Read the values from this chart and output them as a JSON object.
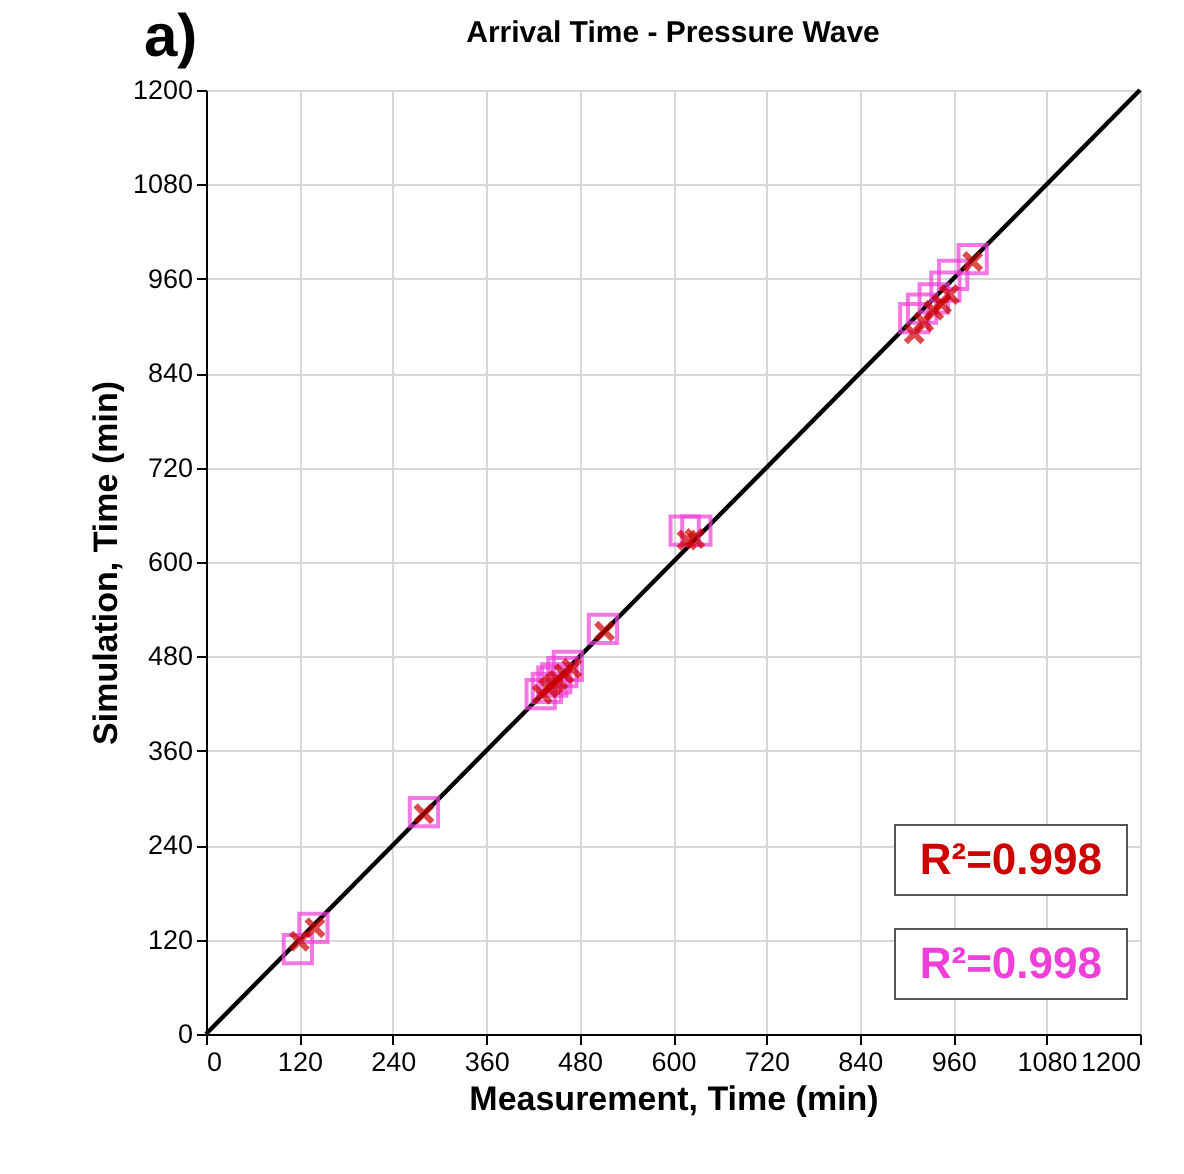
{
  "chart_data": {
    "type": "scatter",
    "title": "Arrival Time - Pressure Wave",
    "xlabel": "Measurement, Time (min)",
    "ylabel": "Simulation, Time (min)",
    "xlim": [
      0,
      1200
    ],
    "ylim": [
      0,
      1200
    ],
    "xticks": [
      0,
      120,
      240,
      360,
      480,
      600,
      720,
      840,
      960,
      1080,
      1200
    ],
    "yticks": [
      0,
      120,
      240,
      360,
      480,
      600,
      720,
      840,
      960,
      1080,
      1200
    ],
    "grid": true,
    "annotations": [
      "a)",
      "R²=0.998",
      "R²=0.998"
    ],
    "series": [
      {
        "type": "line",
        "color": "#000000",
        "marker": "none",
        "x": [
          0,
          1200
        ],
        "values": [
          0,
          1200
        ]
      },
      {
        "color": "#ee3fd8",
        "marker": "square",
        "x": [
          118,
          138,
          280,
          430,
          438,
          445,
          450,
          458,
          465,
          510,
          615,
          630,
          910,
          920,
          935,
          950,
          960,
          985
        ],
        "values": [
          108,
          135,
          282,
          432,
          440,
          448,
          452,
          460,
          468,
          515,
          640,
          640,
          910,
          922,
          935,
          950,
          965,
          985
        ]
      },
      {
        "color": "#cc0000",
        "marker": "cross",
        "x": [
          120,
          140,
          280,
          432,
          440,
          446,
          452,
          460,
          470,
          512,
          618,
          628,
          910,
          922,
          935,
          945,
          955,
          985
        ],
        "values": [
          118,
          135,
          280,
          432,
          440,
          445,
          450,
          458,
          465,
          512,
          628,
          630,
          890,
          905,
          920,
          928,
          940,
          982
        ]
      }
    ]
  }
}
